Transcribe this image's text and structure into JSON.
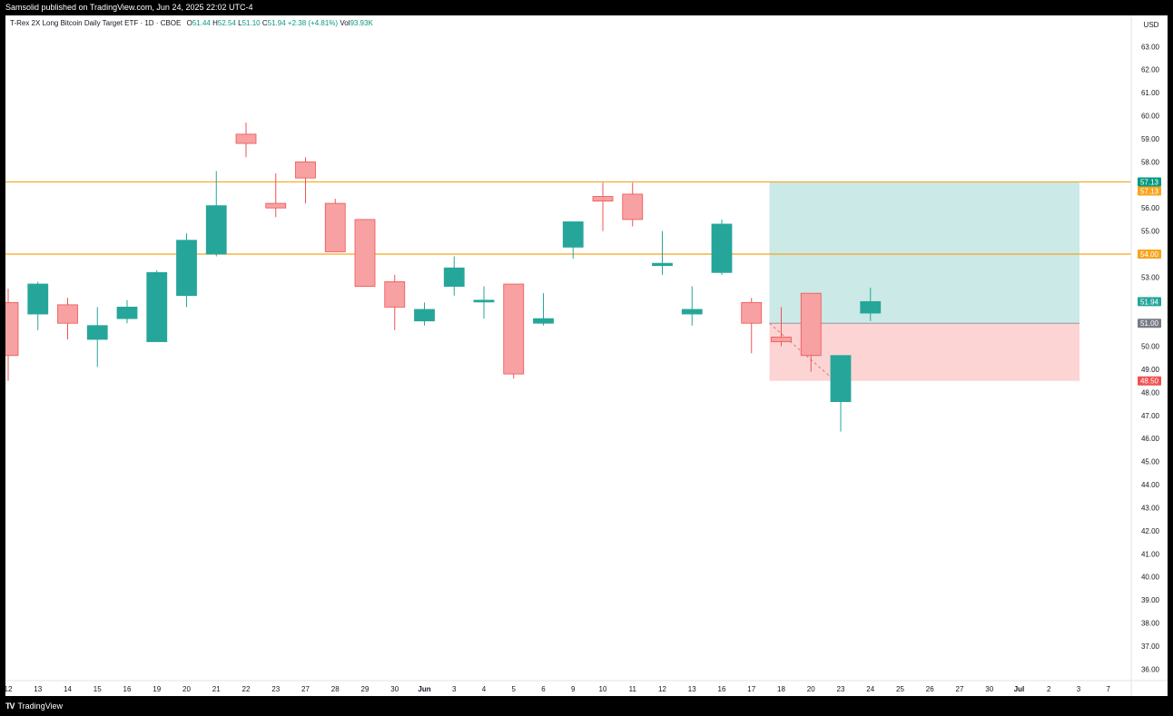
{
  "header": {
    "published_text": "Samsolid published on TradingView.com, Jun 24, 2025 22:02 UTC-4"
  },
  "legend": {
    "symbol_name": "T-Rex 2X Long Bitcoin Daily Target ETF · 1D · CBOE",
    "open_label": "O",
    "open_value": "51.44",
    "high_label": "H",
    "high_value": "52.54",
    "low_label": "L",
    "low_value": "51.10",
    "close_label": "C",
    "close_value": "51.94",
    "change_value": "+2.38 (+4.81%)",
    "vol_label": "Vol",
    "vol_value": "93.93K"
  },
  "footer": {
    "brand": "TradingView"
  },
  "colors": {
    "up": "#26a69a",
    "down": "#f7a1a3",
    "down_border": "#ef5350",
    "level_line": "#f7a51e",
    "target_zone": "#cbe9e6",
    "stop_zone": "#fcd4d4",
    "axis_text": "#131722",
    "divider": "#e0e3eb"
  },
  "chart_data": {
    "type": "candlestick",
    "currency_label": "USD",
    "ylim": [
      35.5,
      63.8
    ],
    "y_ticks": [
      "36.00",
      "37.00",
      "38.00",
      "39.00",
      "40.00",
      "41.00",
      "42.00",
      "43.00",
      "44.00",
      "45.00",
      "46.00",
      "47.00",
      "48.00",
      "49.00",
      "50.00",
      "51.00",
      "52.00",
      "53.00",
      "54.00",
      "55.00",
      "56.00",
      "57.00",
      "58.00",
      "59.00",
      "60.00",
      "61.00",
      "62.00",
      "63.00"
    ],
    "x_labels": [
      "12",
      "13",
      "14",
      "15",
      "16",
      "19",
      "20",
      "21",
      "22",
      "23",
      "27",
      "28",
      "29",
      "30",
      "Jun",
      "3",
      "4",
      "5",
      "6",
      "9",
      "10",
      "11",
      "12",
      "13",
      "16",
      "17",
      "18",
      "20",
      "23",
      "24",
      "25",
      "26",
      "27",
      "30",
      "Jul",
      "2",
      "3",
      "7"
    ],
    "candles": [
      {
        "date": "May 12",
        "open": 51.9,
        "high": 52.5,
        "low": 48.5,
        "close": 49.6
      },
      {
        "date": "May 13",
        "open": 51.4,
        "high": 52.8,
        "low": 50.7,
        "close": 52.7
      },
      {
        "date": "May 14",
        "open": 51.8,
        "high": 52.1,
        "low": 50.3,
        "close": 51.0
      },
      {
        "date": "May 15",
        "open": 50.3,
        "high": 51.7,
        "low": 49.1,
        "close": 50.9
      },
      {
        "date": "May 16",
        "open": 51.2,
        "high": 52.0,
        "low": 51.0,
        "close": 51.7
      },
      {
        "date": "May 19",
        "open": 50.2,
        "high": 53.3,
        "low": 50.2,
        "close": 53.2
      },
      {
        "date": "May 20",
        "open": 52.2,
        "high": 54.9,
        "low": 51.7,
        "close": 54.6
      },
      {
        "date": "May 21",
        "open": 54.0,
        "high": 57.6,
        "low": 53.9,
        "close": 56.1
      },
      {
        "date": "May 22",
        "open": 59.2,
        "high": 59.7,
        "low": 58.2,
        "close": 58.8
      },
      {
        "date": "May 23",
        "open": 56.2,
        "high": 57.5,
        "low": 55.6,
        "close": 56.0
      },
      {
        "date": "May 27",
        "open": 58.0,
        "high": 58.2,
        "low": 56.2,
        "close": 57.3
      },
      {
        "date": "May 28",
        "open": 56.2,
        "high": 56.4,
        "low": 54.1,
        "close": 54.1
      },
      {
        "date": "May 29",
        "open": 55.5,
        "high": 55.5,
        "low": 52.6,
        "close": 52.6
      },
      {
        "date": "May 30",
        "open": 52.8,
        "high": 53.1,
        "low": 50.7,
        "close": 51.7
      },
      {
        "date": "Jun 2",
        "open": 51.1,
        "high": 51.9,
        "low": 50.9,
        "close": 51.6
      },
      {
        "date": "Jun 3",
        "open": 52.6,
        "high": 53.9,
        "low": 52.2,
        "close": 53.4
      },
      {
        "date": "Jun 4",
        "open": 52.0,
        "high": 52.6,
        "low": 51.2,
        "close": 52.0
      },
      {
        "date": "Jun 5",
        "open": 52.7,
        "high": 52.7,
        "low": 48.6,
        "close": 48.8
      },
      {
        "date": "Jun 6",
        "open": 51.0,
        "high": 52.3,
        "low": 50.9,
        "close": 51.2
      },
      {
        "date": "Jun 9",
        "open": 54.3,
        "high": 55.4,
        "low": 53.8,
        "close": 55.4
      },
      {
        "date": "Jun 10",
        "open": 56.5,
        "high": 57.1,
        "low": 55.0,
        "close": 56.3
      },
      {
        "date": "Jun 11",
        "open": 56.6,
        "high": 57.1,
        "low": 55.2,
        "close": 55.5
      },
      {
        "date": "Jun 12",
        "open": 53.5,
        "high": 55.0,
        "low": 53.1,
        "close": 53.6
      },
      {
        "date": "Jun 13",
        "open": 51.4,
        "high": 52.6,
        "low": 50.9,
        "close": 51.6
      },
      {
        "date": "Jun 16",
        "open": 53.2,
        "high": 55.5,
        "low": 53.1,
        "close": 55.3
      },
      {
        "date": "Jun 17",
        "open": 51.9,
        "high": 52.1,
        "low": 49.7,
        "close": 51.0
      },
      {
        "date": "Jun 18",
        "open": 50.4,
        "high": 51.7,
        "low": 50.0,
        "close": 50.2
      },
      {
        "date": "Jun 20",
        "open": 52.3,
        "high": 52.3,
        "low": 48.9,
        "close": 49.6
      },
      {
        "date": "Jun 23",
        "open": 47.6,
        "high": 49.6,
        "low": 46.3,
        "close": 49.6
      },
      {
        "date": "Jun 24",
        "open": 51.44,
        "high": 52.54,
        "low": 51.1,
        "close": 51.94
      }
    ],
    "horizontal_levels": [
      57.13,
      54.0
    ],
    "long_position": {
      "entry": 51.0,
      "target": 57.13,
      "stop": 48.5,
      "start_date": "Jun 18",
      "end_date": "Jul 3"
    },
    "price_labels": [
      {
        "value": 57.13,
        "text": "57.13",
        "role": "last-close-level",
        "color": "#089981"
      },
      {
        "value": 57.13,
        "text": "57.13",
        "role": "target-level",
        "color": "#f7a51e"
      },
      {
        "value": 54.0,
        "text": "54.00",
        "role": "level",
        "color": "#f7a51e"
      },
      {
        "value": 51.94,
        "text": "51.94",
        "role": "last-price",
        "color": "#26a69a"
      },
      {
        "value": 51.0,
        "text": "51.00",
        "role": "entry",
        "color": "#787b86"
      },
      {
        "value": 48.5,
        "text": "48.50",
        "role": "stop",
        "color": "#ef5350"
      }
    ]
  }
}
